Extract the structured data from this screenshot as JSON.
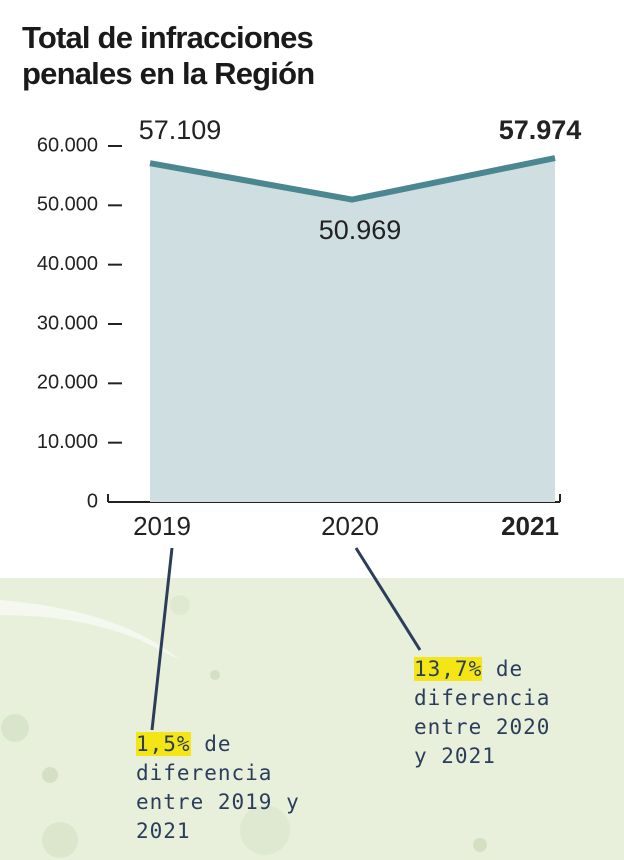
{
  "chart_data": {
    "type": "area",
    "title": "Total de infracciones penales en la Región",
    "categories": [
      "2019",
      "2020",
      "2021"
    ],
    "values": [
      57109,
      50969,
      57974
    ],
    "value_labels": [
      "57.109",
      "50.969",
      "57.974"
    ],
    "color": "#4a8790",
    "fill_color": "#cfdfe1",
    "ylim": [
      0,
      60000
    ],
    "yticks": [
      0,
      {
        "value": 10000,
        "label": "10.000"
      },
      {
        "value": 20000,
        "label": "20.000"
      },
      {
        "value": 30000,
        "label": "30.000"
      },
      {
        "value": 40000,
        "label": "40.000"
      },
      {
        "value": 50000,
        "label": "50.000"
      },
      {
        "value": 60000,
        "label": "60.000"
      }
    ],
    "annotations": [
      {
        "highlight": "1,5%",
        "text": "de diferencia entre 2019 y 2021"
      },
      {
        "highlight": "13,7%",
        "text": "de diferencia entre 2020 y 2021"
      }
    ]
  }
}
